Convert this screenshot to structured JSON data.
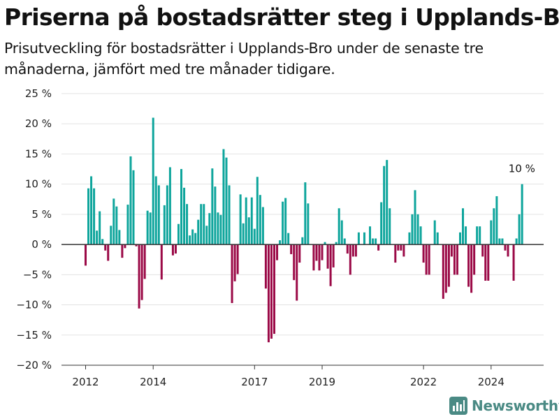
{
  "header": {
    "title": "Priserna på bostadsrätter steg i Upplands-Bro",
    "subtitle": "Prisutveckling för bostadsrätter i Upplands-Bro under de senaste tre månaderna, jämfört med tre månader tidigare."
  },
  "brand": {
    "name": "Newsworthy",
    "icon": "newsworthy-chart-icon",
    "color": "#4a8a84"
  },
  "colors": {
    "positive": "#0ea59c",
    "negative": "#9b0a47",
    "grid": "#e3e3e3",
    "zero_line": "#333333"
  },
  "chart_data": {
    "type": "bar",
    "unit": "%",
    "x_start": "2012-01",
    "x_step": "month",
    "ylim": [
      -20,
      25
    ],
    "y_ticks": [
      25,
      20,
      15,
      10,
      5,
      0,
      -5,
      -10,
      -15,
      -20
    ],
    "y_tick_labels": [
      "25 %",
      "20 %",
      "15 %",
      "10 %",
      "5 %",
      "0 %",
      "−5 %",
      "−10 %",
      "−15 %",
      "−20 %"
    ],
    "x_ticks": [
      "2012",
      "2014",
      "2017",
      "2019",
      "2022",
      "2024"
    ],
    "grid": true,
    "values": [
      -3.5,
      9.3,
      11.3,
      9.3,
      2.3,
      5.5,
      0.9,
      -1.0,
      -2.7,
      3.1,
      7.6,
      6.3,
      2.4,
      -2.2,
      -0.6,
      6.6,
      14.6,
      12.3,
      -0.3,
      -10.6,
      -9.2,
      -5.7,
      5.6,
      5.3,
      21.0,
      11.3,
      9.8,
      -5.8,
      6.5,
      9.8,
      12.8,
      -1.8,
      -1.5,
      3.4,
      12.5,
      9.4,
      6.7,
      1.5,
      2.5,
      1.9,
      4.1,
      6.7,
      6.7,
      3.1,
      5.2,
      12.6,
      9.6,
      5.3,
      4.9,
      15.8,
      14.4,
      9.8,
      -9.7,
      -6.1,
      -4.9,
      8.3,
      3.5,
      7.8,
      4.5,
      7.8,
      2.6,
      11.2,
      8.2,
      6.2,
      -7.3,
      -16.2,
      -15.6,
      -14.8,
      -2.6,
      0.7,
      7.1,
      7.7,
      1.9,
      -1.6,
      -5.9,
      -9.3,
      -3.0,
      1.2,
      10.3,
      6.8,
      0.0,
      -4.3,
      -2.7,
      -4.3,
      -2.6,
      0.4,
      -4.0,
      -6.9,
      -3.8,
      0.4,
      6.0,
      4.0,
      1.0,
      -1.5,
      -5.0,
      -2.0,
      -2.0,
      2.0,
      0.0,
      2.0,
      0.0,
      3.0,
      1.0,
      1.0,
      -1.0,
      7.0,
      13.0,
      14.0,
      6.0,
      0.0,
      -3.0,
      -1.0,
      -1.0,
      -2.0,
      0.0,
      2.0,
      5.0,
      9.0,
      5.0,
      3.0,
      -3.0,
      -5.0,
      -5.0,
      0.0,
      4.0,
      2.0,
      0.0,
      -9.0,
      -8.0,
      -7.0,
      -2.0,
      -5.0,
      -5.0,
      2.0,
      6.0,
      3.0,
      -7.0,
      -8.0,
      -5.0,
      3.0,
      3.0,
      -2.0,
      -6.0,
      -6.0,
      4.0,
      6.0,
      8.0,
      1.0,
      1.0,
      -1.0,
      -2.0,
      0.0,
      -6.0,
      1.0,
      5.0,
      10.0
    ],
    "annotation": {
      "text": "10 %"
    }
  }
}
